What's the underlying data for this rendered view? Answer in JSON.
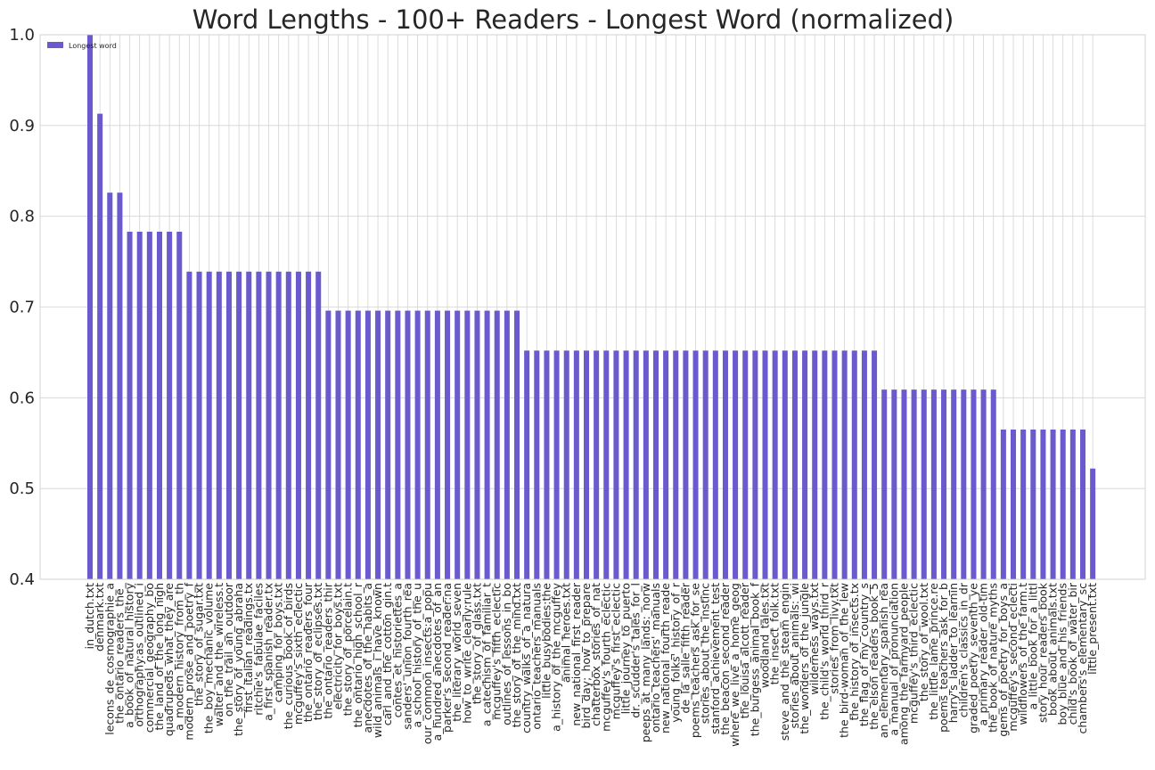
{
  "chart_data": {
    "type": "bar",
    "title": "Word Lengths - 100+ Readers - Longest Word (normalized)",
    "categories": [
      "in_dutch.txt",
      "denmark.txt",
      "lecons_de_cosmographie_a",
      "the_ontario_readers_the_",
      "a_book_of_natural_history",
      "orthography:as_outlined_i",
      "commercial_geography_bo",
      "the_land_of_the_long_nigh",
      "quadrupeds_what_they_are",
      "a_modern_history_from_th",
      "modern_prose_and_poetry_f",
      "the_story_of_sugar.txt",
      "the_boy_mechanic_volume",
      "walter_and_the_wireless.t",
      "on_the_trail_an_outdoor",
      "the_story_of_young_abraha",
      "first_italian_readings.tx",
      "ritchie's_fabulae_faciles",
      "a_first_spanish_reader.tx",
      "camping_for_boys.txt",
      "the_curious_book_of_birds",
      "mcguffey's_sixth_eclectic",
      "the_ontario_readers_four",
      "the_story_of_eclipses.txt",
      "the_ontario_readers_thir",
      "electricity_for_boys.txt",
      "the_story_of_porcelain.t",
      "the_ontario_high_school_r",
      "anecdotes_of_the_habits_a",
      "wild_animals_i_have_known",
      "carl_and_the_cotton_gin.t",
      "contes_et_historiettes_a",
      "sanders'_union_fourth_rea",
      "a_school_history_of_the_u",
      "our_common_insects:a_popu",
      "a_hundred_anecdotes_of_an",
      "parker's_second_reader:na",
      "the_literary_world_seven",
      "how_to_write_clearly:rule",
      "the_story_of_glass.txt",
      "a_catechism_of_familiar_t",
      "mcguffey's_fifth_eclectic",
      "outlines_of_lessons_in_bo",
      "the_story_of_the_mind.txt",
      "country_walks_of_a_natura",
      "ontario_teachers_manuals",
      "little_busybodies:the",
      "a_history_of_the_mcguffey",
      "animal_heroes.txt",
      "new_national_first_reader",
      "bird_day;_how_to_prepare",
      "chatterbox_stories_of_nat",
      "mcguffey's_fourth_eclectic",
      "mcguffey's_first_eclectic",
      "little_journey_to_puerto",
      "dr._scudder's_tales_for_l",
      "peeps_at_many_lands:_norw",
      "ontario_teachers'_manuals",
      "new_national_fourth_reade",
      "young_folks'_history_of_r",
      "de_la_salle_fifth_reader",
      "poems_teachers_ask_for_se",
      "stories_about_the_instinc",
      "stanford_achievement_test",
      "the_beacon_second_reader",
      "where_we_live_a_home_geog",
      "the_louisa_alcott_reader",
      "the_burgess_animal_book_f",
      "woodland_tales.txt",
      "the_insect_folk.txt",
      "steve_and_the_steam_engin",
      "stories_about_animals:_wi",
      "the_wonders_of_the_jungle",
      "wilderness_ways.txt",
      "the_child's_world_third_r",
      "stories_from_livy.txt",
      "the_bird-woman_of_the_lew",
      "the_history_of_insects.tx",
      "the_flag_of_my_country_s",
      "the_elson_readers_book_5",
      "an_elementary_spanish_rea",
      "a_manual_of_pronunciation",
      "among_the_farmyard_people",
      "mcguffey's_third_eclectic",
      "the_story_of_wool.txt",
      "the_little_lame_prince.re",
      "poems_teachers_ask_for_b",
      "harry's_ladder_to_learnin",
      "children's_classics_in_dr",
      "graded_poetry_seventh_ye",
      "a_primary_reader_old-tim",
      "the_book_of_nature_myths",
      "gems_of_poetry_for_boys_a",
      "mcguffey's_second_eclecti",
      "wildflowers_of_the_farm.t",
      "a_little_book_for_a_littl",
      "story_hour_readers_book",
      "book_about_animals.txt",
      "boy_blue_and_his_friends",
      "child's_book_of_water_bir",
      "chambers's_elementary_sc",
      "little_present.txt"
    ],
    "series": [
      {
        "name": "Longest word",
        "color": "#6a5acd",
        "values": [
          1.0,
          0.913,
          0.826,
          0.826,
          0.783,
          0.783,
          0.783,
          0.783,
          0.783,
          0.783,
          0.739,
          0.739,
          0.739,
          0.739,
          0.739,
          0.739,
          0.739,
          0.739,
          0.739,
          0.739,
          0.739,
          0.739,
          0.739,
          0.739,
          0.696,
          0.696,
          0.696,
          0.696,
          0.696,
          0.696,
          0.696,
          0.696,
          0.696,
          0.696,
          0.696,
          0.696,
          0.696,
          0.696,
          0.696,
          0.696,
          0.696,
          0.696,
          0.696,
          0.696,
          0.652,
          0.652,
          0.652,
          0.652,
          0.652,
          0.652,
          0.652,
          0.652,
          0.652,
          0.652,
          0.652,
          0.652,
          0.652,
          0.652,
          0.652,
          0.652,
          0.652,
          0.652,
          0.652,
          0.652,
          0.652,
          0.652,
          0.652,
          0.652,
          0.652,
          0.652,
          0.652,
          0.652,
          0.652,
          0.652,
          0.652,
          0.652,
          0.652,
          0.652,
          0.652,
          0.652,
          0.609,
          0.609,
          0.609,
          0.609,
          0.609,
          0.609,
          0.609,
          0.609,
          0.609,
          0.609,
          0.609,
          0.609,
          0.565,
          0.565,
          0.565,
          0.565,
          0.565,
          0.565,
          0.565,
          0.565,
          0.565,
          0.522
        ]
      }
    ],
    "ylim": [
      0.4,
      1.0
    ],
    "yticks": [
      0.4,
      0.5,
      0.6,
      0.7,
      0.8,
      0.9,
      {
        "value": 1,
        "label": "1.0"
      }
    ],
    "grid": true,
    "legend": "upper left"
  }
}
